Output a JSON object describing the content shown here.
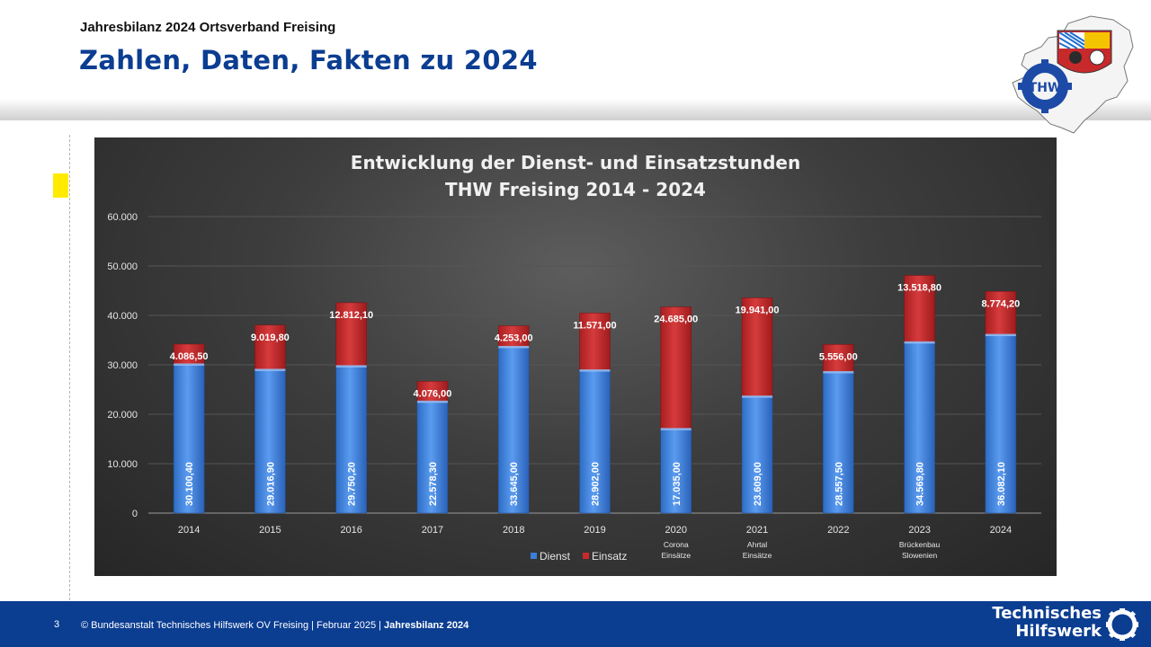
{
  "header": {
    "subtitle": "Jahresbilanz 2024 Ortsverband Freising",
    "title": "Zahlen, Daten, Fakten zu 2024"
  },
  "logo": {
    "icon": "thw-bavaria-map-logo",
    "text": "THW"
  },
  "footer": {
    "page_number": "3",
    "copyright": "© Bundesanstalt Technisches Hilfswerk OV Freising | Februar 2025 | ",
    "copyright_bold": "Jahresbilanz 2024",
    "brand_line1": "Technisches",
    "brand_line2": "Hilfswerk",
    "brand_icon": "thw-gear-icon"
  },
  "colors": {
    "dienst": "#3b7fd6",
    "einsatz": "#c8292b",
    "brand_blue": "#0b3d91",
    "marker": "#ffeb00"
  },
  "chart_data": {
    "type": "bar",
    "stacked": true,
    "title_line1": "Entwicklung der Dienst- und Einsatzstunden",
    "title_line2": "THW Freising 2014 - 2024",
    "categories": [
      "2014",
      "2015",
      "2016",
      "2017",
      "2018",
      "2019",
      "2020",
      "2021",
      "2022",
      "2023",
      "2024"
    ],
    "category_notes": [
      "",
      "",
      "",
      "",
      "",
      "",
      "Corona\nEinsätze",
      "Ahrtal\nEinsätze",
      "",
      "Brückenbau\nSlowenien",
      ""
    ],
    "series": [
      {
        "name": "Dienst",
        "values": [
          30100.4,
          29016.9,
          29750.2,
          22578.3,
          33645.0,
          28902.0,
          17035.0,
          23609.0,
          28557.5,
          34569.8,
          36082.1
        ],
        "labels": [
          "30.100,40",
          "29.016,90",
          "29.750,20",
          "22.578,30",
          "33.645,00",
          "28.902,00",
          "17.035,00",
          "23.609,00",
          "28.557,50",
          "34.569,80",
          "36.082,10"
        ]
      },
      {
        "name": "Einsatz",
        "values": [
          4086.5,
          9019.8,
          12812.1,
          4076.0,
          4253.0,
          11571.0,
          24685.0,
          19941.0,
          5556.0,
          13518.8,
          8774.2
        ],
        "labels": [
          "4.086,50",
          "9.019,80",
          "12.812,10",
          "4.076,00",
          "4.253,00",
          "11.571,00",
          "24.685,00",
          "19.941,00",
          "5.556,00",
          "13.518,80",
          "8.774,20"
        ]
      }
    ],
    "ylim": [
      0,
      60000
    ],
    "yticks": [
      0,
      10000,
      20000,
      30000,
      40000,
      50000,
      60000
    ],
    "ytick_labels": [
      "0",
      "10.000",
      "20.000",
      "30.000",
      "40.000",
      "50.000",
      "60.000"
    ],
    "grid": true,
    "legend": "bottom"
  }
}
